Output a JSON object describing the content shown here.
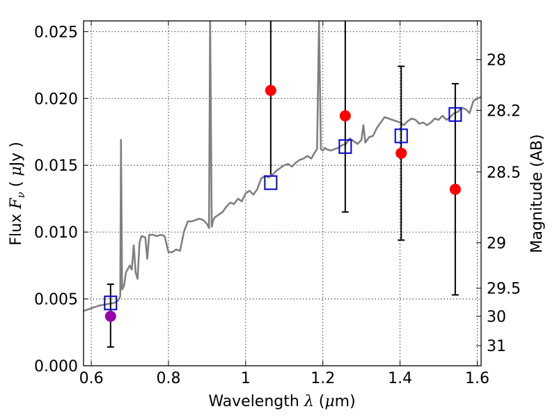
{
  "chart_data": {
    "type": "scatter",
    "title": "",
    "xlabel": "Wavelength  λ (μm)",
    "ylabel": "Flux  F_ν  ( μJy )",
    "ylabel_right": "Magnitude (AB)",
    "xlim": [
      0.58,
      1.61
    ],
    "ylim": [
      0.0,
      0.0258
    ],
    "grid": true,
    "x_ticks": [
      0.6,
      0.8,
      1.0,
      1.2,
      1.4,
      1.6
    ],
    "x_tick_labels": [
      "0.6",
      "0.8",
      "1",
      "1.2",
      "1.4",
      "1.6"
    ],
    "y_ticks": [
      0.0,
      0.005,
      0.01,
      0.015,
      0.02,
      0.025
    ],
    "y_tick_labels": [
      "0.000",
      "0.005",
      "0.010",
      "0.015",
      "0.020",
      "0.025"
    ],
    "right_axis": {
      "ticks_mag": [
        28,
        28.2,
        28.5,
        29,
        29.5,
        30,
        31
      ],
      "tick_labels": [
        "28",
        "28.2",
        "28.5",
        "29",
        "29.5",
        "30",
        "31"
      ],
      "positions_flux": [
        0.0229,
        0.0191,
        0.0145,
        0.0092,
        0.0058,
        0.0037,
        0.0015
      ]
    },
    "series": [
      {
        "kind": "line",
        "color": "#808080",
        "x": [
          0.58,
          0.6,
          0.62,
          0.64,
          0.66,
          0.67,
          0.675,
          0.677,
          0.68,
          0.685,
          0.69,
          0.7,
          0.705,
          0.71,
          0.715,
          0.72,
          0.725,
          0.73,
          0.74,
          0.745,
          0.75,
          0.76,
          0.77,
          0.78,
          0.79,
          0.8,
          0.81,
          0.82,
          0.83,
          0.84,
          0.85,
          0.86,
          0.87,
          0.88,
          0.89,
          0.9,
          0.905,
          0.908,
          0.912,
          0.916,
          0.92,
          0.93,
          0.94,
          0.95,
          0.96,
          0.97,
          0.98,
          0.99,
          1.0,
          1.01,
          1.02,
          1.03,
          1.04,
          1.05,
          1.06,
          1.07,
          1.08,
          1.09,
          1.1,
          1.11,
          1.12,
          1.13,
          1.14,
          1.15,
          1.16,
          1.17,
          1.18,
          1.185,
          1.19,
          1.195,
          1.2,
          1.205,
          1.21,
          1.22,
          1.23,
          1.24,
          1.25,
          1.26,
          1.27,
          1.28,
          1.29,
          1.3,
          1.305,
          1.31,
          1.32,
          1.33,
          1.34,
          1.35,
          1.36,
          1.37,
          1.38,
          1.39,
          1.4,
          1.41,
          1.42,
          1.43,
          1.44,
          1.45,
          1.46,
          1.47,
          1.48,
          1.49,
          1.5,
          1.51,
          1.52,
          1.53,
          1.54,
          1.55,
          1.56,
          1.57,
          1.58,
          1.59,
          1.6,
          1.61
        ],
        "y": [
          0.0041,
          0.0043,
          0.0045,
          0.0046,
          0.0047,
          0.0049,
          0.0052,
          0.0169,
          0.0057,
          0.006,
          0.007,
          0.0075,
          0.0072,
          0.009,
          0.007,
          0.0065,
          0.0092,
          0.0097,
          0.0096,
          0.008,
          0.0098,
          0.0098,
          0.0097,
          0.0098,
          0.0097,
          0.0085,
          0.0085,
          0.0087,
          0.0086,
          0.01,
          0.0108,
          0.0108,
          0.0109,
          0.011,
          0.0109,
          0.0106,
          0.0103,
          0.026,
          0.0104,
          0.0109,
          0.0111,
          0.0113,
          0.0115,
          0.0119,
          0.0122,
          0.0121,
          0.0125,
          0.0123,
          0.0129,
          0.0131,
          0.0128,
          0.0132,
          0.014,
          0.0142,
          0.0141,
          0.0143,
          0.0146,
          0.0148,
          0.015,
          0.0151,
          0.0149,
          0.0152,
          0.0154,
          0.0155,
          0.0157,
          0.0155,
          0.016,
          0.0162,
          0.0258,
          0.0162,
          0.0161,
          0.0163,
          0.0162,
          0.0161,
          0.0162,
          0.0163,
          0.0165,
          0.0166,
          0.017,
          0.0168,
          0.0166,
          0.0169,
          0.018,
          0.0167,
          0.0171,
          0.0172,
          0.0178,
          0.0182,
          0.0186,
          0.0185,
          0.0184,
          0.0183,
          0.0182,
          0.018,
          0.0183,
          0.0185,
          0.0184,
          0.0181,
          0.0182,
          0.018,
          0.0182,
          0.0185,
          0.0184,
          0.0187,
          0.0184,
          0.0186,
          0.0189,
          0.019,
          0.0193,
          0.0192,
          0.0189,
          0.0198,
          0.02,
          0.0201
        ]
      },
      {
        "kind": "points",
        "marker": "circle",
        "color": "#ff0000",
        "x": [
          1.065,
          1.258,
          1.403,
          1.543
        ],
        "y": [
          0.0206,
          0.0187,
          0.0159,
          0.0132
        ]
      },
      {
        "kind": "points",
        "marker": "circle",
        "color": "#9900aa",
        "x": [
          0.65
        ],
        "y": [
          0.0037
        ]
      },
      {
        "kind": "points",
        "marker": "open-square",
        "color": "#0000cc",
        "x": [
          0.65,
          1.065,
          1.258,
          1.403,
          1.543
        ],
        "y": [
          0.0047,
          0.0137,
          0.0164,
          0.0172,
          0.0188
        ]
      }
    ],
    "error_bars": {
      "color": "#000000",
      "x": [
        0.65,
        1.065,
        1.258,
        1.403,
        1.543
      ],
      "low": [
        0.0014,
        0.0143,
        0.0115,
        0.0094,
        0.0053
      ],
      "high": [
        0.0061,
        0.0258,
        0.0258,
        0.0224,
        0.0211
      ],
      "capped_top": [
        true,
        false,
        false,
        true,
        true
      ],
      "capped_bottom": [
        true,
        false,
        true,
        true,
        true
      ]
    }
  }
}
